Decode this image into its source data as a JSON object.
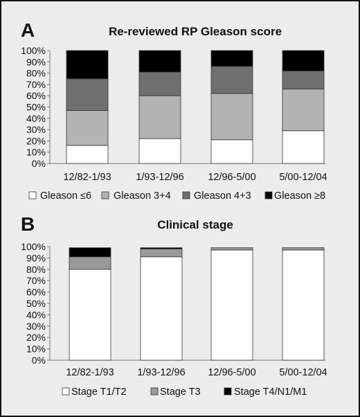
{
  "chart_data": [
    {
      "type": "bar",
      "stacked": true,
      "panel_label": "A",
      "title": "Re-reviewed RP Gleason score",
      "categories": [
        "12/82-1/93",
        "1/93-12/96",
        "12/96-5/00",
        "5/00-12/04"
      ],
      "ylim": [
        0,
        100
      ],
      "yticks": [
        "0%",
        "10%",
        "20%",
        "30%",
        "40%",
        "50%",
        "60%",
        "70%",
        "80%",
        "90%",
        "100%"
      ],
      "grid": false,
      "legend_position": "bottom",
      "series": [
        {
          "name": "Gleason ≤6",
          "color": "#ffffff",
          "values": [
            16,
            22,
            21,
            29
          ]
        },
        {
          "name": "Gleason 3+4",
          "color": "#b3b3b3",
          "values": [
            31,
            38,
            41,
            37
          ]
        },
        {
          "name": "Gleason 4+3",
          "color": "#6f6f6f",
          "values": [
            28,
            21,
            24,
            16
          ]
        },
        {
          "name": "Gleason ≥8",
          "color": "#000000",
          "values": [
            25,
            19,
            14,
            18
          ]
        }
      ]
    },
    {
      "type": "bar",
      "stacked": true,
      "panel_label": "B",
      "title": "Clinical stage",
      "categories": [
        "12/82-1/93",
        "1/93-12/96",
        "12/96-5/00",
        "5/00-12/04"
      ],
      "ylim": [
        0,
        100
      ],
      "yticks": [
        "0%",
        "10%",
        "20%",
        "30%",
        "40%",
        "50%",
        "60%",
        "70%",
        "80%",
        "90%",
        "100%"
      ],
      "grid": false,
      "legend_position": "bottom",
      "series": [
        {
          "name": "Stage T1/T2",
          "color": "#ffffff",
          "values": [
            80,
            91,
            97,
            97
          ]
        },
        {
          "name": "Stage T3",
          "color": "#999999",
          "values": [
            11,
            7,
            2,
            2
          ]
        },
        {
          "name": "Stage T4/N1/M1",
          "color": "#000000",
          "values": [
            8,
            1,
            0,
            0
          ]
        }
      ]
    }
  ]
}
